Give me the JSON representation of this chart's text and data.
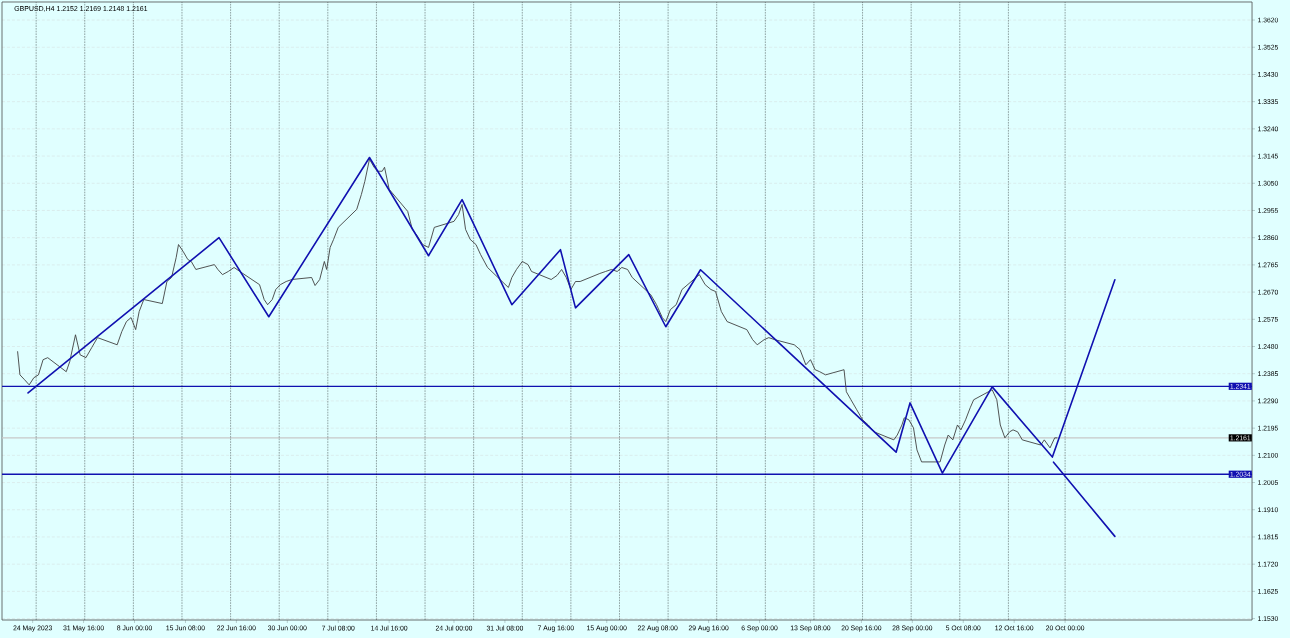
{
  "chart_data": {
    "type": "line",
    "title": "GBPUSD,H4 1.2152 1.2169 1.2148 1.2161",
    "xlim": [
      "2023-05-19T22:00",
      "2023-11-15T22:00"
    ],
    "ylim": [
      1.1525,
      1.3683
    ],
    "xticks": [
      {
        "value": "2023-05-24T08:00",
        "label": "24 May 2023"
      },
      {
        "value": "2023-05-31T16:00",
        "label": "31 May 16:00"
      },
      {
        "value": "2023-06-08T00:00",
        "label": "8 Jun 00:00"
      },
      {
        "value": "2023-06-15T08:00",
        "label": "15 Jun 08:00"
      },
      {
        "value": "2023-06-22T16:00",
        "label": "22 Jun 16:00"
      },
      {
        "value": "2023-06-30T00:00",
        "label": "30 Jun 00:00"
      },
      {
        "value": "2023-07-07T08:00",
        "label": "7 Jul 08:00"
      },
      {
        "value": "2023-07-14T16:00",
        "label": "14 Jul 16:00"
      },
      {
        "value": "2023-07-24T00:00",
        "label": "24 Jul 00:00"
      },
      {
        "value": "2023-07-31T08:00",
        "label": "31 Jul 08:00"
      },
      {
        "value": "2023-08-07T16:00",
        "label": "7 Aug 16:00"
      },
      {
        "value": "2023-08-15T00:00",
        "label": "15 Aug 00:00"
      },
      {
        "value": "2023-08-22T08:00",
        "label": "22 Aug 08:00"
      },
      {
        "value": "2023-08-29T16:00",
        "label": "29 Aug 16:00"
      },
      {
        "value": "2023-09-06T00:00",
        "label": "6 Sep 00:00"
      },
      {
        "value": "2023-09-13T08:00",
        "label": "13 Sep 08:00"
      },
      {
        "value": "2023-09-20T16:00",
        "label": "20 Sep 16:00"
      },
      {
        "value": "2023-09-28T00:00",
        "label": "28 Sep 00:00"
      },
      {
        "value": "2023-10-05T08:00",
        "label": "5 Oct 08:00"
      },
      {
        "value": "2023-10-12T16:00",
        "label": "12 Oct 16:00"
      },
      {
        "value": "2023-10-20T00:00",
        "label": "20 Oct 00:00"
      }
    ],
    "yticks": [
      {
        "value": 1.362,
        "label": "1.3620"
      },
      {
        "value": 1.3525,
        "label": "1.3525"
      },
      {
        "value": 1.343,
        "label": "1.3430"
      },
      {
        "value": 1.3335,
        "label": "1.3335"
      },
      {
        "value": 1.324,
        "label": "1.3240"
      },
      {
        "value": 1.3145,
        "label": "1.3145"
      },
      {
        "value": 1.305,
        "label": "1.3050"
      },
      {
        "value": 1.2955,
        "label": "1.2955"
      },
      {
        "value": 1.286,
        "label": "1.2860"
      },
      {
        "value": 1.2765,
        "label": "1.2765"
      },
      {
        "value": 1.267,
        "label": "1.2670"
      },
      {
        "value": 1.2575,
        "label": "1.2575"
      },
      {
        "value": 1.248,
        "label": "1.2480"
      },
      {
        "value": 1.2385,
        "label": "1.2385"
      },
      {
        "value": 1.229,
        "label": "1.2290"
      },
      {
        "value": 1.2195,
        "label": "1.2195"
      },
      {
        "value": 1.21,
        "label": "1.2100"
      },
      {
        "value": 1.2005,
        "label": "1.2005"
      },
      {
        "value": 1.191,
        "label": "1.1910"
      },
      {
        "value": 1.1815,
        "label": "1.1815"
      },
      {
        "value": 1.172,
        "label": "1.1720"
      },
      {
        "value": 1.1625,
        "label": "1.1625"
      },
      {
        "value": 1.153,
        "label": "1.1530"
      }
    ],
    "grid": "y",
    "marker": "none",
    "line_style": "solid",
    "series": [
      {
        "color": "#404040",
        "x": [
          "2023-05-22T04:00",
          "2023-05-22T12:00",
          "2023-05-23T04:00",
          "2023-05-23T20:00",
          "2023-05-24T12:00",
          "2023-05-25T04:00",
          "2023-05-25T20:00",
          "2023-05-26T12:00",
          "2023-05-29T04:00",
          "2023-05-29T16:00",
          "2023-05-30T12:00",
          "2023-05-31T04:00",
          "2023-06-01T00:00",
          "2023-06-01T20:00",
          "2023-06-02T16:00",
          "2023-06-05T12:00",
          "2023-06-06T04:00",
          "2023-06-06T20:00",
          "2023-06-07T12:00",
          "2023-06-08T04:00",
          "2023-06-08T16:00",
          "2023-06-09T08:00",
          "2023-06-12T00:00",
          "2023-06-12T16:00",
          "2023-06-13T08:00",
          "2023-06-14T00:00",
          "2023-06-14T08:00",
          "2023-06-15T00:00",
          "2023-06-15T16:00",
          "2023-06-16T04:00",
          "2023-06-16T20:00",
          "2023-06-19T12:00",
          "2023-06-20T00:00",
          "2023-06-20T16:00",
          "2023-06-21T12:00",
          "2023-06-22T08:00",
          "2023-06-23T04:00",
          "2023-06-26T00:00",
          "2023-06-26T16:00",
          "2023-06-27T04:00",
          "2023-06-27T20:00",
          "2023-06-28T08:00",
          "2023-06-29T00:00",
          "2023-06-29T20:00",
          "2023-06-30T16:00",
          "2023-07-03T12:00",
          "2023-07-04T00:00",
          "2023-07-04T16:00",
          "2023-07-05T08:00",
          "2023-07-05T16:00",
          "2023-07-06T04:00",
          "2023-07-06T16:00",
          "2023-07-07T08:00",
          "2023-07-10T00:00",
          "2023-07-10T16:00",
          "2023-07-11T04:00",
          "2023-07-11T20:00",
          "2023-07-12T12:00",
          "2023-07-13T00:00",
          "2023-07-13T16:00",
          "2023-07-14T00:00",
          "2023-07-14T16:00",
          "2023-07-17T08:00",
          "2023-07-18T00:00",
          "2023-07-18T16:00",
          "2023-07-19T12:00",
          "2023-07-20T08:00",
          "2023-07-21T04:00",
          "2023-07-24T00:00",
          "2023-07-24T16:00",
          "2023-07-25T04:00",
          "2023-07-25T16:00",
          "2023-07-26T08:00",
          "2023-07-27T04:00",
          "2023-07-27T20:00",
          "2023-07-28T20:00",
          "2023-07-31T20:00",
          "2023-08-01T08:00",
          "2023-08-02T00:00",
          "2023-08-02T20:00",
          "2023-08-03T16:00",
          "2023-08-04T04:00",
          "2023-08-07T00:00",
          "2023-08-07T20:00",
          "2023-08-08T12:00",
          "2023-08-09T04:00",
          "2023-08-09T20:00",
          "2023-08-10T12:00",
          "2023-08-11T04:00",
          "2023-08-14T00:00",
          "2023-08-14T20:00",
          "2023-08-15T16:00",
          "2023-08-16T12:00",
          "2023-08-17T04:00",
          "2023-08-18T00:00",
          "2023-08-18T16:00",
          "2023-08-21T08:00",
          "2023-08-22T04:00",
          "2023-08-23T00:00",
          "2023-08-23T12:00",
          "2023-08-24T04:00",
          "2023-08-25T00:00",
          "2023-08-25T20:00",
          "2023-08-28T08:00",
          "2023-08-29T04:00",
          "2023-08-30T00:00",
          "2023-08-30T16:00",
          "2023-08-31T12:00",
          "2023-09-01T08:00",
          "2023-09-04T04:00",
          "2023-09-05T00:00",
          "2023-09-05T16:00",
          "2023-09-06T16:00",
          "2023-09-07T08:00",
          "2023-09-08T04:00",
          "2023-09-11T00:00",
          "2023-09-11T20:00",
          "2023-09-12T16:00",
          "2023-09-13T08:00",
          "2023-09-14T00:00",
          "2023-09-14T16:00",
          "2023-09-15T12:00",
          "2023-09-18T04:00",
          "2023-09-18T12:00",
          "2023-09-19T04:00",
          "2023-09-20T00:00",
          "2023-09-20T20:00",
          "2023-09-21T16:00",
          "2023-09-22T12:00",
          "2023-09-25T08:00",
          "2023-09-25T20:00",
          "2023-09-26T12:00",
          "2023-09-26T20:00",
          "2023-09-27T12:00",
          "2023-09-28T04:00",
          "2023-09-28T16:00",
          "2023-09-29T08:00",
          "2023-10-02T00:00",
          "2023-10-02T16:00",
          "2023-10-03T04:00",
          "2023-10-03T20:00",
          "2023-10-04T12:00",
          "2023-10-05T00:00",
          "2023-10-05T16:00",
          "2023-10-06T08:00",
          "2023-10-06T20:00",
          "2023-10-09T12:00",
          "2023-10-10T04:00",
          "2023-10-10T16:00",
          "2023-10-11T08:00",
          "2023-10-12T00:00",
          "2023-10-12T12:00",
          "2023-10-13T04:00",
          "2023-10-13T20:00",
          "2023-10-16T12:00",
          "2023-10-17T00:00",
          "2023-10-17T20:00",
          "2023-10-18T12:00",
          "2023-10-18T20:00"
        ],
        "values": [
          1.2462,
          1.2381,
          1.2364,
          1.2346,
          1.2371,
          1.2381,
          1.2434,
          1.2441,
          1.2392,
          1.2427,
          1.2521,
          1.2451,
          1.2441,
          1.2476,
          1.2511,
          1.2486,
          1.2532,
          1.2567,
          1.2581,
          1.2539,
          1.2602,
          1.2644,
          1.263,
          1.2707,
          1.2721,
          1.2791,
          1.2836,
          1.2812,
          1.2784,
          1.2777,
          1.2749,
          1.2766,
          1.2749,
          1.2731,
          1.2742,
          1.2756,
          1.2742,
          1.2696,
          1.2644,
          1.2626,
          1.2644,
          1.2679,
          1.2696,
          1.2707,
          1.2714,
          1.2721,
          1.2693,
          1.2714,
          1.2777,
          1.2749,
          1.2826,
          1.2854,
          1.2896,
          1.2959,
          1.3011,
          1.3057,
          1.3134,
          1.3106,
          1.3092,
          1.3092,
          1.3106,
          1.3029,
          1.2952,
          1.2889,
          1.2868,
          1.2836,
          1.2826,
          1.2896,
          1.2917,
          1.2941,
          1.2976,
          1.2889,
          1.2854,
          1.2836,
          1.2801,
          1.2756,
          1.2686,
          1.2721,
          1.2749,
          1.2777,
          1.2766,
          1.2742,
          1.2714,
          1.2728,
          1.2749,
          1.2721,
          1.2679,
          1.2707,
          1.2707,
          1.2735,
          1.2742,
          1.2749,
          1.2742,
          1.2756,
          1.2749,
          1.2721,
          1.2661,
          1.2626,
          1.2581,
          1.2567,
          1.2609,
          1.2626,
          1.2679,
          1.2731,
          1.2696,
          1.2679,
          1.2672,
          1.2602,
          1.2567,
          1.2539,
          1.2504,
          1.2486,
          1.2504,
          1.2511,
          1.2504,
          1.2486,
          1.2469,
          1.2416,
          1.2434,
          1.2399,
          1.2392,
          1.2381,
          1.2399,
          1.2322,
          1.2294,
          1.2259,
          1.2224,
          1.2206,
          1.2182,
          1.2154,
          1.2171,
          1.2206,
          1.2231,
          1.2224,
          1.2196,
          1.2119,
          1.2077,
          1.2077,
          1.2136,
          1.2171,
          1.2154,
          1.2206,
          1.2189,
          1.2224,
          1.2266,
          1.2294,
          1.2329,
          1.2294,
          1.2206,
          1.2161,
          1.2182,
          1.2189,
          1.2182,
          1.2154,
          1.2136,
          1.2154,
          1.2126,
          1.2161,
          1.2161
        ]
      },
      {
        "color": "#1010b0",
        "x": [
          "2023-05-23T16:00",
          "2023-06-20T04:00",
          "2023-06-27T08:00",
          "2023-07-11T20:00",
          "2023-07-20T08:00",
          "2023-07-25T04:00",
          "2023-08-01T08:00",
          "2023-08-08T08:00",
          "2023-08-10T12:00",
          "2023-08-18T04:00",
          "2023-08-23T12:00",
          "2023-08-28T12:00",
          "2023-09-25T16:00",
          "2023-09-27T16:00",
          "2023-10-02T08:00",
          "2023-10-09T12:00",
          "2023-10-18T04:00",
          "2023-10-27T04:00"
        ],
        "values": [
          1.2318,
          1.286,
          1.2584,
          1.314,
          1.2797,
          1.2993,
          1.2626,
          1.2818,
          1.2615,
          1.2801,
          1.2549,
          1.2748,
          1.2111,
          1.2283,
          1.2038,
          1.2339,
          1.2094,
          1.2713
        ]
      },
      {
        "color": "#1010b0",
        "x": [
          "2023-10-18T08:00",
          "2023-10-27T04:00"
        ],
        "values": [
          1.2076,
          1.1817
        ]
      }
    ],
    "ref_lines": [
      {
        "axis": "y",
        "value": 1.2341,
        "label": "1.2341",
        "color": "#1010b0",
        "line_style": "solid"
      },
      {
        "axis": "y",
        "value": 1.2034,
        "label": "1.2034",
        "color": "#1010b0",
        "line_style": "solid"
      },
      {
        "axis": "y",
        "value": 1.2161,
        "label": "1.2161",
        "color": "#c8c8c8",
        "line_style": "solid"
      },
      {
        "axis": "x",
        "value": "2023-05-24T20:00",
        "color": "#000000",
        "line_style": "dotted"
      },
      {
        "axis": "x",
        "value": "2023-05-31T20:00",
        "color": "#000000",
        "line_style": "dotted"
      },
      {
        "axis": "x",
        "value": "2023-06-07T20:00",
        "color": "#000000",
        "line_style": "dotted"
      },
      {
        "axis": "x",
        "value": "2023-06-14T20:00",
        "color": "#000000",
        "line_style": "dotted"
      },
      {
        "axis": "x",
        "value": "2023-06-21T20:00",
        "color": "#000000",
        "line_style": "dotted"
      },
      {
        "axis": "x",
        "value": "2023-06-28T20:00",
        "color": "#000000",
        "line_style": "dotted"
      },
      {
        "axis": "x",
        "value": "2023-07-05T20:00",
        "color": "#000000",
        "line_style": "dotted"
      },
      {
        "axis": "x",
        "value": "2023-07-12T20:00",
        "color": "#000000",
        "line_style": "dotted"
      },
      {
        "axis": "x",
        "value": "2023-07-19T20:00",
        "color": "#000000",
        "line_style": "dotted"
      },
      {
        "axis": "x",
        "value": "2023-07-26T20:00",
        "color": "#000000",
        "line_style": "dotted"
      },
      {
        "axis": "x",
        "value": "2023-08-02T20:00",
        "color": "#000000",
        "line_style": "dotted"
      },
      {
        "axis": "x",
        "value": "2023-08-09T20:00",
        "color": "#000000",
        "line_style": "dotted"
      },
      {
        "axis": "x",
        "value": "2023-08-16T20:00",
        "color": "#000000",
        "line_style": "dotted"
      },
      {
        "axis": "x",
        "value": "2023-08-23T20:00",
        "color": "#000000",
        "line_style": "dotted"
      },
      {
        "axis": "x",
        "value": "2023-08-30T20:00",
        "color": "#000000",
        "line_style": "dotted"
      },
      {
        "axis": "x",
        "value": "2023-09-06T20:00",
        "color": "#000000",
        "line_style": "dotted"
      },
      {
        "axis": "x",
        "value": "2023-09-13T20:00",
        "color": "#000000",
        "line_style": "dotted"
      },
      {
        "axis": "x",
        "value": "2023-09-20T20:00",
        "color": "#000000",
        "line_style": "dotted"
      },
      {
        "axis": "x",
        "value": "2023-09-27T20:00",
        "color": "#000000",
        "line_style": "dotted"
      },
      {
        "axis": "x",
        "value": "2023-10-04T20:00",
        "color": "#000000",
        "line_style": "dotted"
      },
      {
        "axis": "x",
        "value": "2023-10-11T20:00",
        "color": "#000000",
        "line_style": "dotted"
      },
      {
        "axis": "x",
        "value": "2023-10-20T00:00",
        "color": "#000000",
        "line_style": "dotted"
      }
    ]
  }
}
